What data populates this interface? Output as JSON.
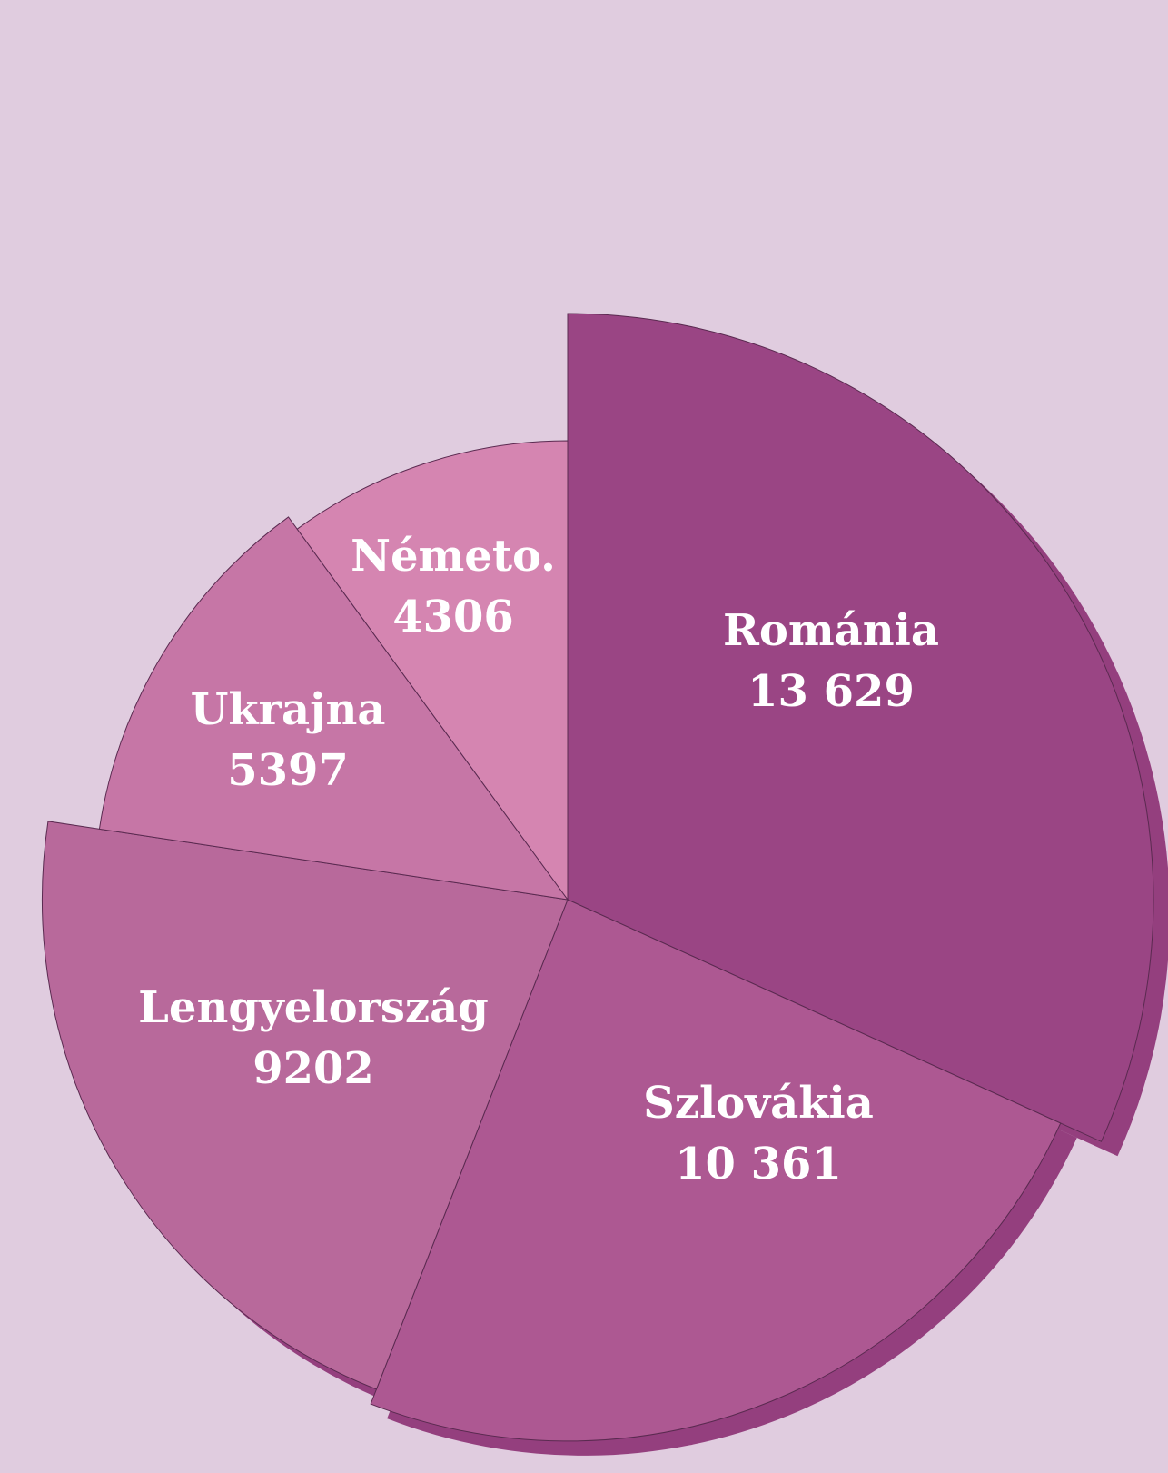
{
  "chart_data": {
    "type": "pie",
    "title": "",
    "slices": [
      {
        "label": "Románia",
        "value_text": "13 629",
        "value": 13629,
        "color": "#9a4584"
      },
      {
        "label": "Szlovákia",
        "value_text": "10 361",
        "value": 10361,
        "color": "#ad5892"
      },
      {
        "label": "Lengyelország",
        "value_text": "9202",
        "value": 9202,
        "color": "#b8699b"
      },
      {
        "label": "Ukrajna",
        "value_text": "5397",
        "value": 5397,
        "color": "#c676a6"
      },
      {
        "label": "Németo.",
        "value_text": "4306",
        "value": 4306,
        "color": "#d585b1"
      }
    ],
    "shadow_color": "#943f7e",
    "background": "#e0ccdf",
    "legend": "none"
  }
}
